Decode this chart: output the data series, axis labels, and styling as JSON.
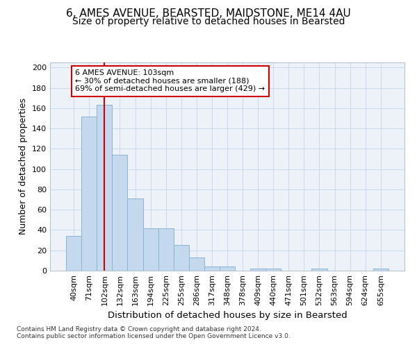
{
  "title_line1": "6, AMES AVENUE, BEARSTED, MAIDSTONE, ME14 4AU",
  "title_line2": "Size of property relative to detached houses in Bearsted",
  "xlabel": "Distribution of detached houses by size in Bearsted",
  "ylabel": "Number of detached properties",
  "categories": [
    "40sqm",
    "71sqm",
    "102sqm",
    "132sqm",
    "163sqm",
    "194sqm",
    "225sqm",
    "255sqm",
    "286sqm",
    "317sqm",
    "348sqm",
    "378sqm",
    "409sqm",
    "440sqm",
    "471sqm",
    "501sqm",
    "532sqm",
    "563sqm",
    "594sqm",
    "624sqm",
    "655sqm"
  ],
  "values": [
    34,
    152,
    163,
    114,
    71,
    42,
    42,
    25,
    13,
    4,
    4,
    0,
    2,
    2,
    0,
    0,
    2,
    0,
    0,
    0,
    2
  ],
  "bar_color": "#c5d9ee",
  "bar_edge_color": "#8ab4d4",
  "vline_x_index": 2,
  "vline_color": "#cc0000",
  "annotation_line1": "6 AMES AVENUE: 103sqm",
  "annotation_line2": "← 30% of detached houses are smaller (188)",
  "annotation_line3": "69% of semi-detached houses are larger (429) →",
  "annotation_box_color": "#ffffff",
  "annotation_border_color": "#cc0000",
  "ylim_max": 205,
  "yticks": [
    0,
    20,
    40,
    60,
    80,
    100,
    120,
    140,
    160,
    180,
    200
  ],
  "grid_color": "#c8d8ec",
  "bg_color": "#edf2f9",
  "footer_line1": "Contains HM Land Registry data © Crown copyright and database right 2024.",
  "footer_line2": "Contains public sector information licensed under the Open Government Licence v3.0.",
  "title1_fontsize": 11,
  "title2_fontsize": 10,
  "axis_label_fontsize": 9,
  "tick_fontsize": 8,
  "annotation_fontsize": 8,
  "footer_fontsize": 6.5
}
